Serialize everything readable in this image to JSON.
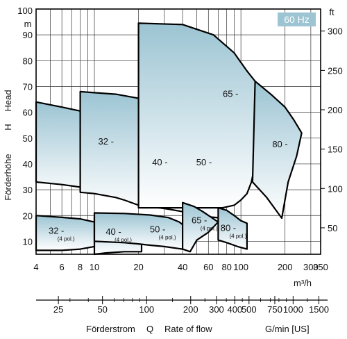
{
  "chart_data": {
    "type": "area",
    "frequency_badge": "60 Hz",
    "y_axis_left": {
      "unit": "m",
      "ticks": [
        10,
        20,
        30,
        40,
        50,
        60,
        70,
        80,
        90,
        100
      ],
      "range": [
        5,
        100
      ],
      "label_de": "Förderhöhe",
      "label_h": "H",
      "label_en": "Head"
    },
    "y_axis_right": {
      "unit": "ft",
      "ticks": [
        50,
        100,
        150,
        200,
        250,
        300
      ],
      "range": [
        16.4,
        328
      ]
    },
    "x_axis_main": {
      "unit": "m³/h",
      "scale": "log",
      "range": [
        4,
        350
      ],
      "ticks": [
        4,
        6,
        8,
        10,
        20,
        40,
        60,
        80,
        100,
        200,
        300,
        350
      ],
      "tick_labels": [
        "4",
        "6",
        "8",
        "10",
        "20",
        "40",
        "60",
        "80",
        "100",
        "200",
        "300",
        "350"
      ]
    },
    "x_axis_secondary": {
      "unit": "G/min [US]",
      "scale": "log",
      "ticks": [
        25,
        50,
        100,
        200,
        300,
        400,
        500,
        750,
        1000,
        1500
      ],
      "tick_labels": [
        "25",
        "50",
        "100",
        "200",
        "300",
        "400",
        "500",
        "750",
        "1000",
        "1500"
      ]
    },
    "x_caption": {
      "de": "Förderstrom",
      "q": "Q",
      "en": "Rate of flow"
    },
    "grid": true,
    "zones": [
      {
        "label": "32 -",
        "sub": "",
        "label_at": [
          12,
          47.5
        ],
        "points": [
          [
            4,
            64
          ],
          [
            6,
            62
          ],
          [
            8,
            60.5
          ],
          [
            10,
            59
          ],
          [
            14,
            56
          ],
          [
            17,
            51
          ],
          [
            19.5,
            44
          ],
          [
            20,
            43
          ],
          [
            20,
            26.5
          ],
          [
            17,
            28
          ],
          [
            12,
            29.5
          ],
          [
            8,
            31
          ],
          [
            6,
            32
          ],
          [
            4,
            33
          ]
        ]
      },
      {
        "label": "40 -",
        "sub": "",
        "label_at": [
          28,
          39.5
        ],
        "points": [
          [
            8,
            68
          ],
          [
            14,
            67
          ],
          [
            22,
            65
          ],
          [
            30,
            61
          ],
          [
            40,
            53
          ],
          [
            40,
            21.5
          ],
          [
            32,
            22.5
          ],
          [
            24,
            23.5
          ],
          [
            20,
            24
          ],
          [
            16,
            26
          ],
          [
            14,
            27
          ],
          [
            10,
            28.5
          ],
          [
            8,
            29
          ]
        ]
      },
      {
        "label": "50 -",
        "sub": "",
        "label_at": [
          56,
          39.5
        ],
        "points": [
          [
            40,
            53
          ],
          [
            55,
            50.5
          ],
          [
            68,
            47
          ],
          [
            75,
            45
          ],
          [
            75,
            19
          ],
          [
            60,
            19.5
          ],
          [
            50,
            20.5
          ],
          [
            40,
            21
          ]
        ]
      },
      {
        "label": "65 -",
        "sub": "",
        "label_at": [
          85,
          66
        ],
        "points": [
          [
            20,
            94.5
          ],
          [
            40,
            94
          ],
          [
            65,
            90
          ],
          [
            90,
            83
          ],
          [
            110,
            76
          ],
          [
            125,
            72
          ],
          [
            125,
            40
          ],
          [
            118,
            33
          ],
          [
            110,
            28.5
          ],
          [
            100,
            26
          ],
          [
            90,
            24
          ],
          [
            75,
            23
          ],
          [
            20,
            23
          ]
        ]
      },
      {
        "label": "80 -",
        "sub": "",
        "label_at": [
          185,
          46.5
        ],
        "points": [
          [
            125,
            72
          ],
          [
            160,
            67
          ],
          [
            200,
            62
          ],
          [
            230,
            57
          ],
          [
            260,
            52
          ],
          [
            240,
            43
          ],
          [
            210,
            33
          ],
          [
            190,
            19
          ],
          [
            150,
            27
          ],
          [
            120,
            33
          ]
        ]
      },
      {
        "label": "32 -",
        "sub": "(4 pol.)",
        "label_at": [
          5.5,
          13
        ],
        "points": [
          [
            4,
            20
          ],
          [
            6,
            19.3
          ],
          [
            8,
            18.7
          ],
          [
            10,
            17.5
          ],
          [
            11,
            16.5
          ],
          [
            10,
            8
          ],
          [
            8,
            7
          ],
          [
            6,
            6.5
          ],
          [
            4,
            6.5
          ]
        ]
      },
      {
        "label": "40 -",
        "sub": "(4 pol.)",
        "label_at": [
          13.5,
          12.5
        ],
        "points": [
          [
            10,
            19.5
          ],
          [
            14,
            19
          ],
          [
            18,
            18.3
          ],
          [
            20,
            16.8
          ],
          [
            21,
            16
          ],
          [
            21,
            6
          ],
          [
            16,
            6
          ],
          [
            12,
            5.5
          ],
          [
            10,
            5
          ]
        ]
      },
      {
        "label": "50 -",
        "sub": "(4 pol.)",
        "label_at": [
          27,
          13.5
        ],
        "points": [
          [
            10,
            21
          ],
          [
            16,
            20.8
          ],
          [
            24,
            20.2
          ],
          [
            32,
            19.2
          ],
          [
            38,
            17.5
          ],
          [
            40,
            16.5
          ],
          [
            40,
            7
          ],
          [
            30,
            8
          ],
          [
            24,
            8.5
          ],
          [
            20,
            9
          ],
          [
            16,
            9.5
          ],
          [
            10,
            10
          ]
        ]
      },
      {
        "label": "65 -",
        "sub": "(4 pol.)",
        "label_at": [
          52,
          17
        ],
        "points": [
          [
            40,
            25
          ],
          [
            48,
            23.5
          ],
          [
            55,
            21.5
          ],
          [
            62,
            19.5
          ],
          [
            70,
            17.5
          ],
          [
            60,
            13.5
          ],
          [
            50,
            10.5
          ],
          [
            45,
            6
          ],
          [
            40,
            7
          ]
        ]
      },
      {
        "label": "80 -",
        "sub": "(4 pol.)",
        "label_at": [
          82,
          14
        ],
        "points": [
          [
            70,
            23
          ],
          [
            80,
            22
          ],
          [
            90,
            20
          ],
          [
            100,
            18
          ],
          [
            110,
            17
          ],
          [
            110,
            7
          ],
          [
            95,
            8
          ],
          [
            80,
            9.5
          ],
          [
            70,
            10.5
          ]
        ]
      }
    ]
  }
}
